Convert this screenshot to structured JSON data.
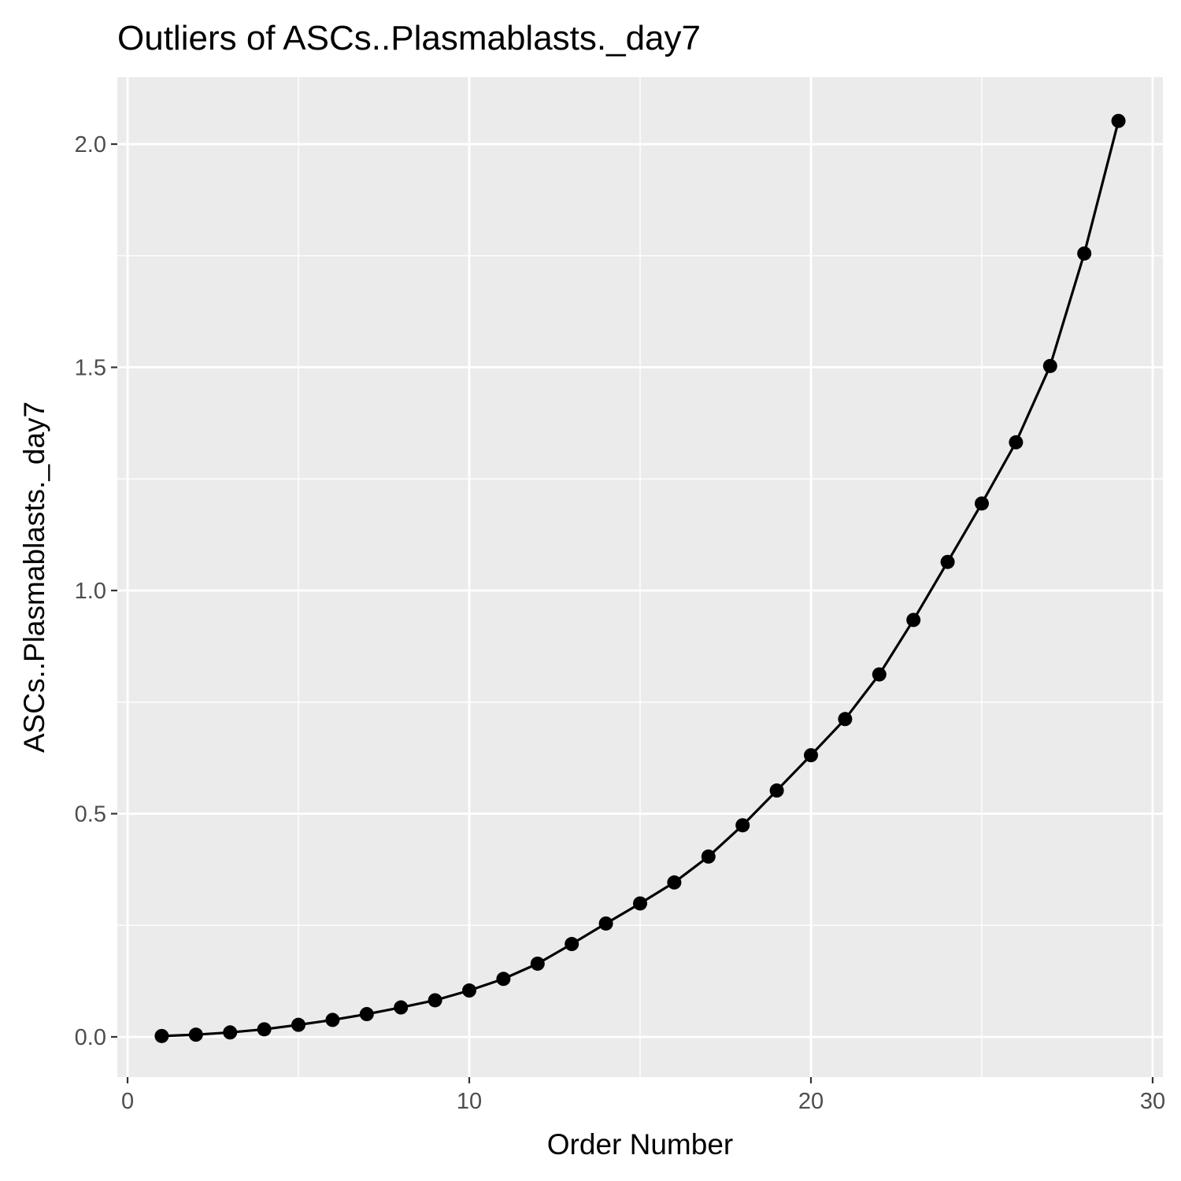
{
  "colors": {
    "panel_background": "#ebebeb",
    "grid_line": "#ffffff",
    "tick_mark": "#333333",
    "tick_label": "#4d4d4d",
    "series": "#000000",
    "text": "#000000"
  },
  "chart_data": {
    "type": "line",
    "title": "Outliers of ASCs..Plasmablasts._day7",
    "xlabel": "Order Number",
    "ylabel": "ASCs..Plasmablasts._day7",
    "xlim": [
      -0.3,
      30.3
    ],
    "ylim": [
      -0.09,
      2.15
    ],
    "x_ticks": [
      0,
      10,
      20,
      30
    ],
    "x_tick_labels": [
      "0",
      "10",
      "20",
      "30"
    ],
    "x_minor_ticks": [
      5,
      15,
      25
    ],
    "y_ticks": [
      0.0,
      0.5,
      1.0,
      1.5,
      2.0
    ],
    "y_tick_labels": [
      "0.0",
      "0.5",
      "1.0",
      "1.5",
      "2.0"
    ],
    "y_minor_ticks": [
      0.25,
      0.75,
      1.25,
      1.75
    ],
    "grid": true,
    "legend": "none",
    "markers": true,
    "series": [
      {
        "x": [
          1,
          2,
          3,
          4,
          5,
          6,
          7,
          8,
          9,
          10,
          11,
          12,
          13,
          14,
          15,
          16,
          17,
          18,
          19,
          20,
          21,
          22,
          23,
          24,
          25,
          26,
          27,
          28,
          29
        ],
        "values": [
          0.002,
          0.005,
          0.01,
          0.017,
          0.027,
          0.038,
          0.051,
          0.066,
          0.082,
          0.104,
          0.13,
          0.164,
          0.208,
          0.254,
          0.299,
          0.346,
          0.404,
          0.474,
          0.552,
          0.631,
          0.712,
          0.812,
          0.934,
          1.064,
          1.195,
          1.332,
          1.503,
          1.755,
          2.052
        ]
      }
    ]
  }
}
